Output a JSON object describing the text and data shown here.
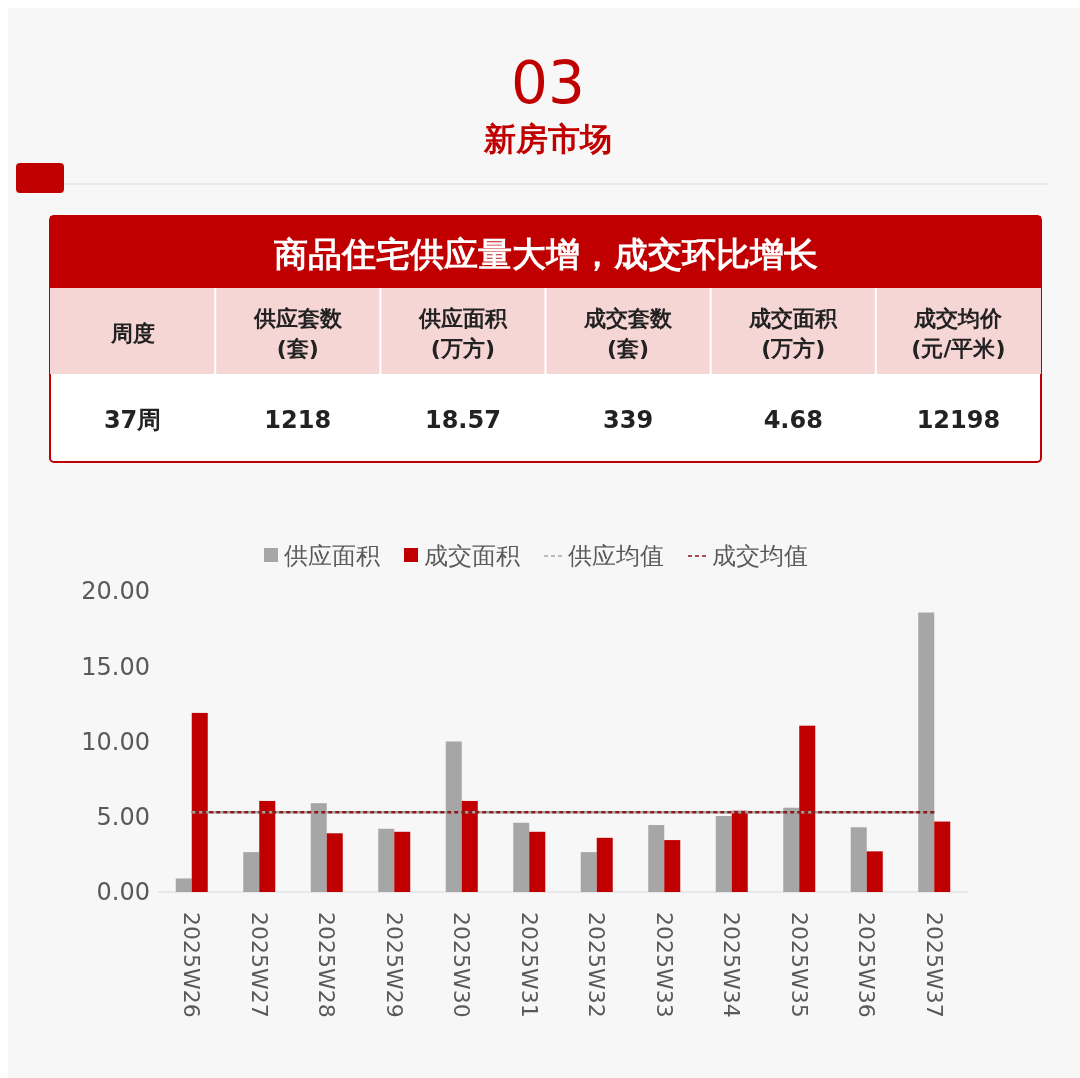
{
  "chart_data": [
    {
      "type": "other",
      "title": "03",
      "subtitle": "新房市场"
    },
    {
      "type": "other",
      "title": "商品住宅供应量大增，成交环比增长",
      "categories": [
        "周度",
        "供应套数\n(套)",
        "供应面积\n(万方)",
        "成交套数\n(套)",
        "成交面积\n(万方)",
        "成交均价\n(元/平米)"
      ],
      "value_labels": [
        "37周",
        "1218",
        "18.57",
        "339",
        "4.68",
        "12198"
      ]
    },
    {
      "type": "bar",
      "categories": [
        "2025W26",
        "2025W27",
        "2025W28",
        "2025W29",
        "2025W30",
        "2025W31",
        "2025W32",
        "2025W33",
        "2025W34",
        "2025W35",
        "2025W36",
        "2025W37"
      ],
      "series": [
        {
          "name": "供应面积",
          "color": "#a6a6a6",
          "values": [
            0.9,
            2.65,
            5.9,
            4.2,
            10.0,
            4.6,
            2.65,
            4.45,
            5.05,
            5.6,
            4.3,
            18.57
          ]
        },
        {
          "name": "成交面积",
          "color": "#c00000",
          "values": [
            11.9,
            6.05,
            3.9,
            4.0,
            6.05,
            4.0,
            3.6,
            3.45,
            5.4,
            11.05,
            2.7,
            4.68
          ]
        }
      ],
      "ylim": [
        0,
        20
      ],
      "yticks": [
        {
          "value": 0,
          "label": "0.00"
        },
        {
          "value": 5,
          "label": "5.00"
        },
        {
          "value": 10,
          "label": "10.00"
        },
        {
          "value": 15,
          "label": "15.00"
        },
        {
          "value": 20,
          "label": "20.00"
        }
      ],
      "ref_lines": [
        {
          "axis": "y",
          "value": 5.3,
          "label": "供应均值",
          "color": "#a6a6a6",
          "line_style": "dashed"
        },
        {
          "axis": "y",
          "value": 5.3,
          "label": "成交均值",
          "color": "#8b1a1a",
          "line_style": "dashed"
        }
      ],
      "grid": false,
      "legend": "top"
    }
  ]
}
